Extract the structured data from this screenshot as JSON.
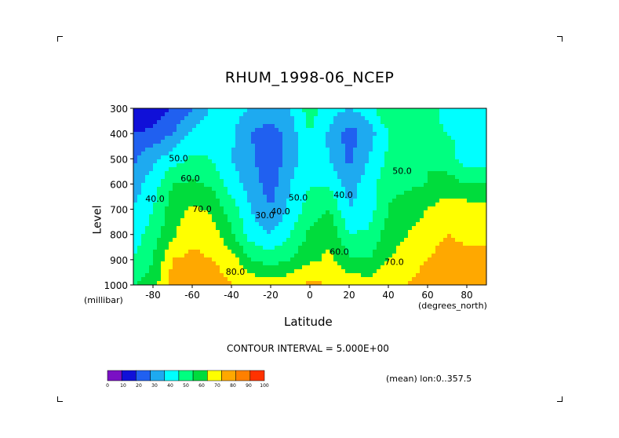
{
  "chart_data": {
    "type": "heatmap",
    "title": "RHUM_1998-06_NCEP",
    "xlabel": "Latitude",
    "ylabel": "Level",
    "x_unit": "(degrees_north)",
    "y_unit": "(millibar)",
    "xlim": [
      -90,
      90
    ],
    "ylim": [
      1000,
      300
    ],
    "x_ticks": [
      -80,
      -60,
      -40,
      -20,
      0,
      20,
      40,
      60,
      80
    ],
    "y_ticks": [
      300,
      400,
      500,
      600,
      700,
      800,
      900,
      1000
    ],
    "contour_interval_text": "CONTOUR INTERVAL = 5.000E+00",
    "averaging_text": "(mean) lon:0..357.5",
    "colorbar": {
      "ticks": [
        0,
        10,
        20,
        30,
        40,
        50,
        60,
        70,
        80,
        90,
        100
      ],
      "colors": [
        "#7a10c4",
        "#1010d8",
        "#2060f0",
        "#1eaaf0",
        "#00ffff",
        "#00ff80",
        "#00dc3c",
        "#ffff00",
        "#ffa800",
        "#ff8000",
        "#ff3200"
      ]
    },
    "latitudes": [
      -90,
      -80,
      -70,
      -60,
      -50,
      -40,
      -30,
      -20,
      -10,
      0,
      10,
      20,
      30,
      40,
      50,
      60,
      70,
      80,
      90
    ],
    "levels": [
      300,
      400,
      500,
      600,
      700,
      800,
      900,
      1000
    ],
    "values": [
      [
        10,
        15,
        20,
        30,
        42,
        45,
        40,
        35,
        40,
        55,
        45,
        40,
        45,
        60,
        60,
        55,
        45,
        40,
        40
      ],
      [
        20,
        22,
        30,
        42,
        45,
        42,
        30,
        25,
        35,
        50,
        38,
        25,
        35,
        50,
        60,
        55,
        50,
        48,
        48
      ],
      [
        28,
        38,
        45,
        52,
        50,
        40,
        32,
        22,
        35,
        48,
        40,
        28,
        40,
        52,
        55,
        60,
        55,
        45,
        45
      ],
      [
        35,
        45,
        60,
        62,
        58,
        45,
        35,
        25,
        40,
        50,
        48,
        35,
        45,
        58,
        58,
        60,
        65,
        60,
        60
      ],
      [
        40,
        50,
        65,
        72,
        68,
        55,
        40,
        30,
        42,
        55,
        60,
        40,
        45,
        60,
        65,
        70,
        75,
        75,
        75
      ],
      [
        45,
        55,
        68,
        78,
        75,
        62,
        45,
        40,
        50,
        62,
        68,
        50,
        52,
        65,
        70,
        75,
        80,
        78,
        80
      ],
      [
        50,
        60,
        80,
        82,
        80,
        75,
        60,
        55,
        60,
        68,
        72,
        62,
        60,
        70,
        75,
        80,
        85,
        82,
        80
      ],
      [
        60,
        65,
        85,
        88,
        85,
        80,
        78,
        75,
        78,
        82,
        80,
        78,
        75,
        78,
        80,
        85,
        85,
        82,
        85
      ]
    ],
    "contour_labels": [
      {
        "text": "50.0",
        "lat": -67,
        "lev": 510
      },
      {
        "text": "60.0",
        "lat": -61,
        "lev": 590
      },
      {
        "text": "40.0",
        "lat": -79,
        "lev": 670
      },
      {
        "text": "70.0",
        "lat": -55,
        "lev": 710
      },
      {
        "text": "80.0",
        "lat": -38,
        "lev": 960
      },
      {
        "text": "30.0",
        "lat": -23,
        "lev": 735
      },
      {
        "text": "40.0",
        "lat": -15,
        "lev": 720
      },
      {
        "text": "50.0",
        "lat": -6,
        "lev": 665
      },
      {
        "text": "40.0",
        "lat": 17,
        "lev": 655
      },
      {
        "text": "60.0",
        "lat": 15,
        "lev": 880
      },
      {
        "text": "50.0",
        "lat": 47,
        "lev": 560
      },
      {
        "text": "70.0",
        "lat": 43,
        "lev": 920
      }
    ]
  }
}
